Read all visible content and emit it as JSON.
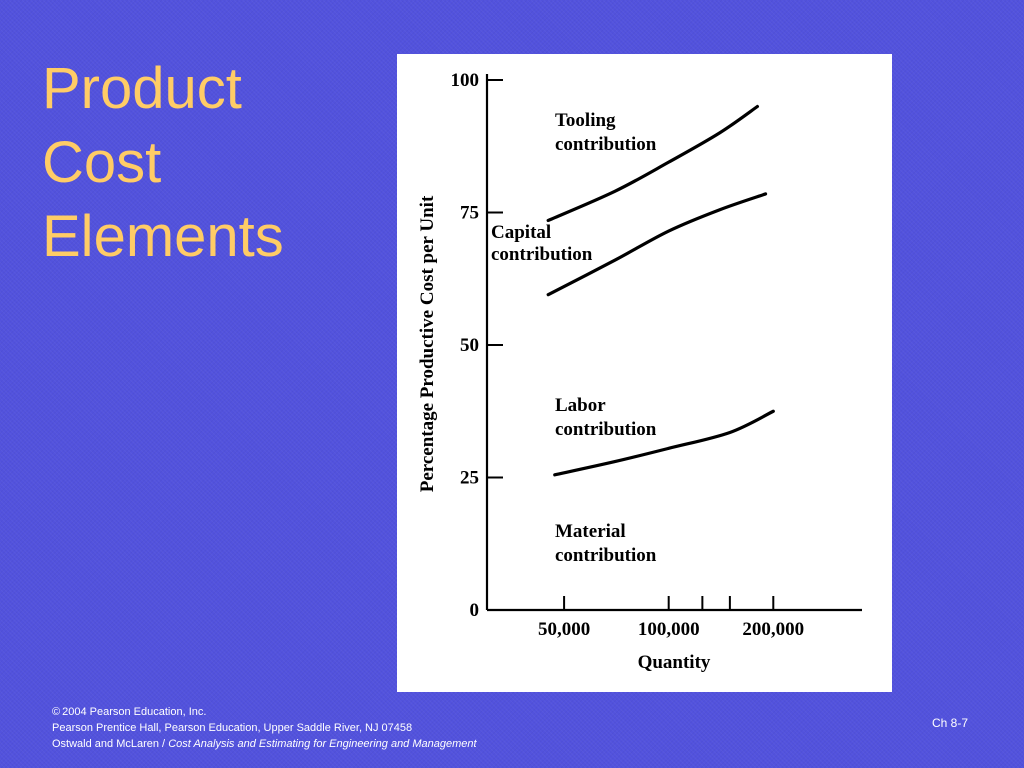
{
  "slide": {
    "title_lines": [
      "Product",
      "Cost",
      "Elements"
    ],
    "footer": {
      "copyright_symbol": "©",
      "copyright_text": "2004 Pearson Education, Inc.",
      "publisher": "Pearson Prentice Hall, Pearson Education, Upper Saddle River, NJ 07458",
      "authors": "Ostwald and McLaren /",
      "book_title": "Cost Analysis and Estimating for Engineering and Management"
    },
    "slide_number": "Ch 8-7"
  },
  "colors": {
    "background": "#5252dd",
    "title": "#ffcc66",
    "chart_background": "#ffffff",
    "ink": "#000000"
  },
  "chart_data": {
    "type": "line",
    "xlabel": "Quantity",
    "ylabel": "Percentage Productive Cost per Unit",
    "x_scale": "log",
    "x_ticks": [
      {
        "value": 50000,
        "label": "50,000"
      },
      {
        "value": 100000,
        "label": "100,000"
      },
      {
        "value": 150000,
        "label": ""
      },
      {
        "value": 200000,
        "label": "200,000"
      }
    ],
    "x_minor_ticks": [
      125000
    ],
    "xlim": [
      30000,
      360000
    ],
    "y_ticks": [
      0,
      25,
      50,
      75,
      100
    ],
    "ylim": [
      0,
      100
    ],
    "grid": false,
    "series": [
      {
        "name": "Tooling contribution",
        "label_lines": [
          "Tooling",
          "contribution"
        ],
        "x": [
          45000,
          70000,
          100000,
          140000,
          180000
        ],
        "y": [
          73.5,
          79,
          84.5,
          90,
          95
        ]
      },
      {
        "name": "Capital contribution",
        "label_lines": [
          "Capital",
          "contribution"
        ],
        "x": [
          45000,
          70000,
          100000,
          140000,
          190000
        ],
        "y": [
          59.5,
          66,
          71.5,
          75.5,
          78.5
        ]
      },
      {
        "name": "Labor contribution",
        "label_lines": [
          "Labor",
          "contribution"
        ],
        "x": [
          47000,
          70000,
          100000,
          150000,
          200000
        ],
        "y": [
          25.5,
          28,
          30.5,
          33.5,
          37.5
        ]
      },
      {
        "name": "Material contribution",
        "label_lines": [
          "Material",
          "contribution"
        ],
        "x": [],
        "y": []
      }
    ]
  }
}
